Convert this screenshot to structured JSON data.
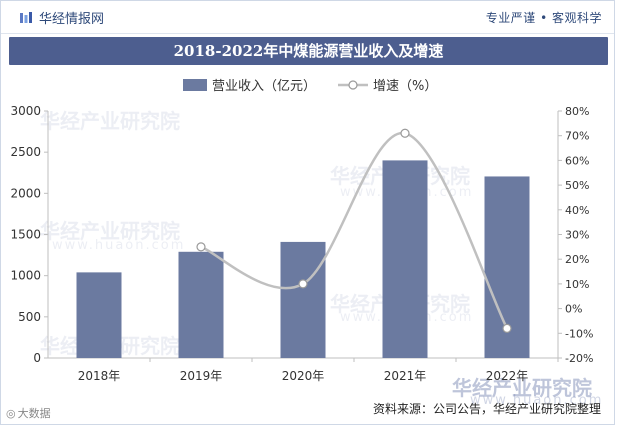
{
  "header": {
    "brand": "华经情报网",
    "slogan": "专业严谨 • 客观科学"
  },
  "title": "2018-2022年中煤能源营业收入及增速",
  "source": "资料来源：公司公告，华经产业研究院整理",
  "bottom_left_mark": "大数据",
  "watermarks": {
    "text": "华经产业研究院",
    "url": "www.huaon.com"
  },
  "colors": {
    "title_bg": "#4d5e8f",
    "bar": "#6b7aa0",
    "line": "#c0c0c0",
    "marker_fill": "#ffffff",
    "marker_stroke": "#9a9a9a"
  },
  "chart_data": {
    "type": "bar",
    "categories": [
      "2018年",
      "2019年",
      "2020年",
      "2021年",
      "2022年"
    ],
    "series": [
      {
        "name": "营业收入（亿元）",
        "type": "bar",
        "axis": "left",
        "values": [
          1040,
          1290,
          1410,
          2400,
          2205
        ]
      },
      {
        "name": "增速（%）",
        "type": "line",
        "axis": "right",
        "values": [
          null,
          25,
          10,
          71,
          -8
        ]
      }
    ],
    "y_left": {
      "min": 0,
      "max": 3000,
      "step": 500,
      "ticks": [
        "0",
        "500",
        "1000",
        "1500",
        "2000",
        "2500",
        "3000"
      ]
    },
    "y_right": {
      "min": -20,
      "max": 80,
      "step": 10,
      "ticks": [
        "-20%",
        "-10%",
        "0%",
        "10%",
        "20%",
        "30%",
        "40%",
        "50%",
        "60%",
        "70%",
        "80%"
      ]
    },
    "legend_position": "top-center",
    "grid": false
  }
}
